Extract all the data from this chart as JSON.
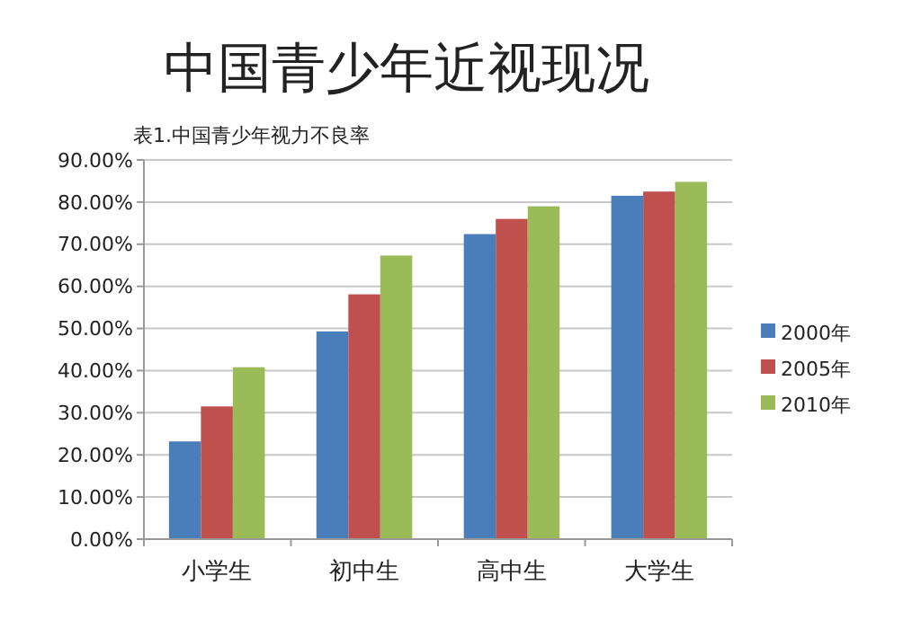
{
  "chart_data": {
    "type": "bar",
    "title": "中国青少年近视现况",
    "subtitle": "表1.中国青少年视力不良率",
    "categories": [
      "小学生",
      "初中生",
      "高中生",
      "大学生"
    ],
    "series": [
      {
        "name": "2000年",
        "color": "#4a7ebb",
        "values": [
          23.2,
          49.3,
          72.4,
          81.5
        ]
      },
      {
        "name": "2005年",
        "color": "#c0504d",
        "values": [
          31.5,
          58.1,
          76.0,
          82.5
        ]
      },
      {
        "name": "2010年",
        "color": "#9bbb59",
        "values": [
          40.8,
          67.3,
          79.0,
          84.8
        ]
      }
    ],
    "ylim": [
      0,
      90
    ],
    "yticks": [
      {
        "value": 0,
        "label": "0.00%"
      },
      {
        "value": 10,
        "label": "10.00%"
      },
      {
        "value": 20,
        "label": "20.00%"
      },
      {
        "value": 30,
        "label": "30.00%"
      },
      {
        "value": 40,
        "label": "40.00%"
      },
      {
        "value": 50,
        "label": "50.00%"
      },
      {
        "value": 60,
        "label": "60.00%"
      },
      {
        "value": 70,
        "label": "70.00%"
      },
      {
        "value": 80,
        "label": "80.00%"
      },
      {
        "value": 90,
        "label": "90.00%"
      }
    ],
    "grid": "y",
    "legend": "right"
  }
}
